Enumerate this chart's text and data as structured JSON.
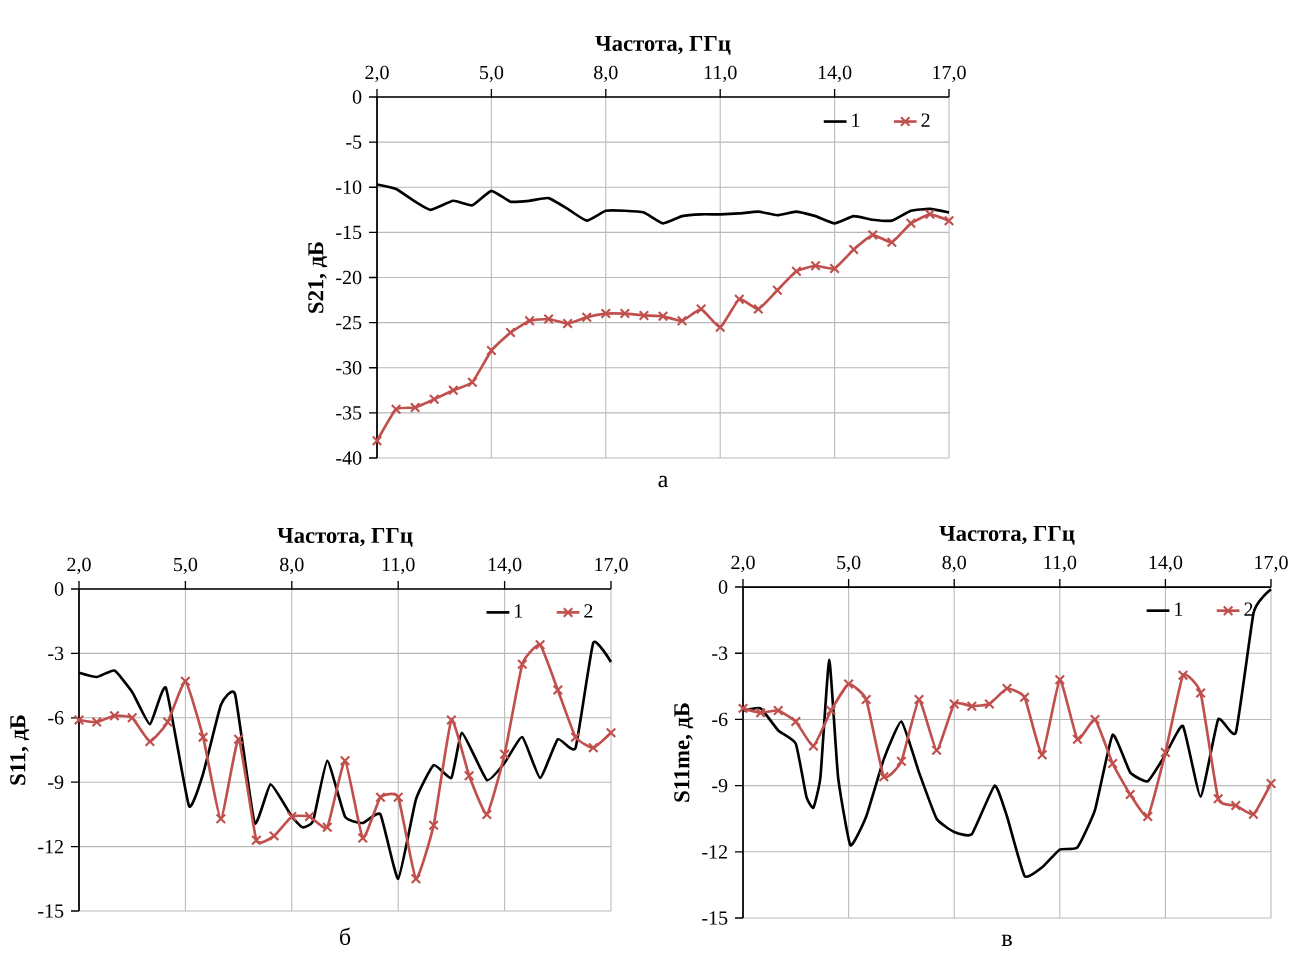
{
  "chart_data": [
    {
      "type": "line",
      "xlabel": "Частота, ГГц",
      "ylabel": "S21, дБ",
      "annotations": [
        "а"
      ],
      "xlim": [
        2,
        17
      ],
      "xticks": [
        {
          "value": 2,
          "label": "2,0"
        },
        {
          "value": 5,
          "label": "5,0"
        },
        {
          "value": 8,
          "label": "8,0"
        },
        {
          "value": 11,
          "label": "11,0"
        },
        {
          "value": 14,
          "label": "14,0"
        },
        {
          "value": 17,
          "label": "17,0"
        }
      ],
      "ylim": [
        -40,
        0
      ],
      "yticks": [
        0,
        -5,
        -10,
        -15,
        -20,
        -25,
        -30,
        -35,
        -40
      ],
      "grid": true,
      "legend": "top right",
      "line_style": "solid",
      "series": [
        {
          "name": "1",
          "color": "#000000",
          "marker": "none",
          "x": [
            2,
            2.5,
            3,
            3.4,
            4,
            4.5,
            5,
            5.5,
            6,
            6.5,
            7,
            7.5,
            8,
            8.5,
            9,
            9.5,
            10,
            10.5,
            11,
            11.5,
            12,
            12.5,
            13,
            13.5,
            14,
            14.5,
            15,
            15.5,
            16,
            16.5,
            17
          ],
          "values": [
            -9.7,
            -10.2,
            -11.6,
            -12.5,
            -11.5,
            -12.0,
            -10.4,
            -11.6,
            -11.5,
            -11.2,
            -12.4,
            -13.7,
            -12.6,
            -12.6,
            -12.8,
            -14.0,
            -13.2,
            -13.0,
            -13.0,
            -12.9,
            -12.7,
            -13.1,
            -12.7,
            -13.2,
            -14.0,
            -13.2,
            -13.6,
            -13.7,
            -12.6,
            -12.4,
            -12.8
          ]
        },
        {
          "name": "2",
          "color": "#c0504d",
          "marker": "cross",
          "x": [
            2,
            2.5,
            3,
            3.5,
            4,
            4.5,
            5,
            5.5,
            6,
            6.5,
            7,
            7.5,
            8,
            8.5,
            9,
            9.5,
            10,
            10.5,
            11,
            11.5,
            12,
            12.5,
            13,
            13.5,
            14,
            14.5,
            15,
            15.5,
            16,
            16.5,
            17
          ],
          "values": [
            -38.1,
            -34.6,
            -34.4,
            -33.5,
            -32.5,
            -31.6,
            -28.1,
            -26.1,
            -24.8,
            -24.6,
            -25.1,
            -24.4,
            -24.0,
            -24.0,
            -24.2,
            -24.3,
            -24.8,
            -23.5,
            -25.5,
            -22.4,
            -23.5,
            -21.4,
            -19.3,
            -18.7,
            -19.0,
            -16.9,
            -15.3,
            -16.1,
            -14.0,
            -13.0,
            -13.7
          ]
        }
      ]
    },
    {
      "type": "line",
      "xlabel": "Частота, ГГц",
      "ylabel": "S11, дБ",
      "annotations": [
        "б"
      ],
      "xlim": [
        2,
        17
      ],
      "xticks": [
        {
          "value": 2,
          "label": "2,0"
        },
        {
          "value": 5,
          "label": "5,0"
        },
        {
          "value": 8,
          "label": "8,0"
        },
        {
          "value": 11,
          "label": "11,0"
        },
        {
          "value": 14,
          "label": "14,0"
        },
        {
          "value": 17,
          "label": "17,0"
        }
      ],
      "ylim": [
        -15,
        0
      ],
      "yticks": [
        0,
        -3,
        -6,
        -9,
        -12,
        -15
      ],
      "grid": true,
      "legend": "top right",
      "line_style": "solid",
      "series": [
        {
          "name": "1",
          "color": "#000000",
          "marker": "none",
          "x": [
            2,
            2.5,
            3,
            3.5,
            4,
            4.45,
            5.1,
            5.5,
            6,
            6.4,
            6.95,
            7.4,
            8,
            8.3,
            8.6,
            9,
            9.5,
            10,
            10.5,
            11,
            11.5,
            12,
            12.5,
            12.8,
            13.5,
            14,
            14.5,
            15,
            15.5,
            16,
            16.5,
            17
          ],
          "values": [
            -3.9,
            -4.1,
            -3.8,
            -4.8,
            -6.3,
            -4.6,
            -10.1,
            -8.6,
            -5.4,
            -4.9,
            -10.9,
            -9.1,
            -10.6,
            -11.1,
            -10.8,
            -8.0,
            -10.6,
            -10.9,
            -10.5,
            -13.5,
            -9.8,
            -8.2,
            -8.8,
            -6.7,
            -8.9,
            -8.1,
            -6.9,
            -8.8,
            -7.0,
            -7.4,
            -2.5,
            -3.4
          ]
        },
        {
          "name": "2",
          "color": "#c0504d",
          "marker": "cross",
          "x": [
            2,
            2.5,
            3,
            3.5,
            4,
            4.5,
            5,
            5.5,
            6,
            6.5,
            7,
            7.5,
            8,
            8.5,
            9,
            9.5,
            10,
            10.5,
            11,
            11.5,
            12,
            12.5,
            13,
            13.5,
            14,
            14.5,
            15,
            15.5,
            16,
            16.5,
            17
          ],
          "values": [
            -6.1,
            -6.2,
            -5.9,
            -6.0,
            -7.1,
            -6.2,
            -4.3,
            -6.9,
            -10.7,
            -7.0,
            -11.7,
            -11.5,
            -10.6,
            -10.6,
            -11.1,
            -8.0,
            -11.6,
            -9.7,
            -9.7,
            -13.5,
            -11.0,
            -6.1,
            -8.7,
            -10.5,
            -7.7,
            -3.5,
            -2.6,
            -4.7,
            -6.9,
            -7.4,
            -6.7
          ]
        }
      ]
    },
    {
      "type": "line",
      "xlabel": "Частота, ГГц",
      "ylabel": "S11me, дБ",
      "annotations": [
        "в"
      ],
      "xlim": [
        2,
        17
      ],
      "xticks": [
        {
          "value": 2,
          "label": "2,0"
        },
        {
          "value": 5,
          "label": "5,0"
        },
        {
          "value": 8,
          "label": "8,0"
        },
        {
          "value": 11,
          "label": "11,0"
        },
        {
          "value": 14,
          "label": "14,0"
        },
        {
          "value": 17,
          "label": "17,0"
        }
      ],
      "ylim": [
        -15,
        0
      ],
      "yticks": [
        0,
        -3,
        -6,
        -9,
        -12,
        -15
      ],
      "grid": true,
      "legend": "top right",
      "line_style": "solid",
      "series": [
        {
          "name": "1",
          "color": "#000000",
          "marker": "none",
          "x": [
            2,
            2.5,
            3,
            3.5,
            3.8,
            4,
            4.2,
            4.45,
            4.7,
            5.05,
            5.5,
            6,
            6.5,
            7,
            7.5,
            8,
            8.5,
            9.15,
            9.5,
            10,
            10.5,
            11,
            11.5,
            12,
            12.5,
            13,
            13.5,
            14,
            14.5,
            15,
            15.5,
            16,
            16.5,
            16.8,
            17
          ],
          "values": [
            -5.6,
            -5.5,
            -6.5,
            -7.1,
            -9.5,
            -10.0,
            -8.6,
            -3.3,
            -8.6,
            -11.7,
            -10.4,
            -7.8,
            -6.1,
            -8.4,
            -10.5,
            -11.1,
            -11.2,
            -9.0,
            -10.4,
            -13.1,
            -12.7,
            -11.9,
            -11.8,
            -10.1,
            -6.7,
            -8.4,
            -8.8,
            -7.6,
            -6.3,
            -9.5,
            -6.0,
            -6.6,
            -1.2,
            -0.4,
            -0.1
          ]
        },
        {
          "name": "2",
          "color": "#c0504d",
          "marker": "cross",
          "x": [
            2,
            2.5,
            3,
            3.5,
            4,
            4.5,
            5,
            5.5,
            6,
            6.5,
            7,
            7.5,
            8,
            8.5,
            9,
            9.5,
            10,
            10.5,
            11,
            11.5,
            12,
            12.5,
            13,
            13.5,
            14,
            14.5,
            15,
            15.5,
            16,
            16.5,
            17
          ],
          "values": [
            -5.5,
            -5.7,
            -5.6,
            -6.1,
            -7.2,
            -5.6,
            -4.4,
            -5.1,
            -8.6,
            -7.9,
            -5.1,
            -7.4,
            -5.3,
            -5.4,
            -5.3,
            -4.6,
            -5.0,
            -7.6,
            -4.2,
            -6.9,
            -6.0,
            -8.0,
            -9.4,
            -10.4,
            -7.5,
            -4.0,
            -4.8,
            -9.6,
            -9.9,
            -10.3,
            -8.9
          ]
        }
      ]
    }
  ]
}
